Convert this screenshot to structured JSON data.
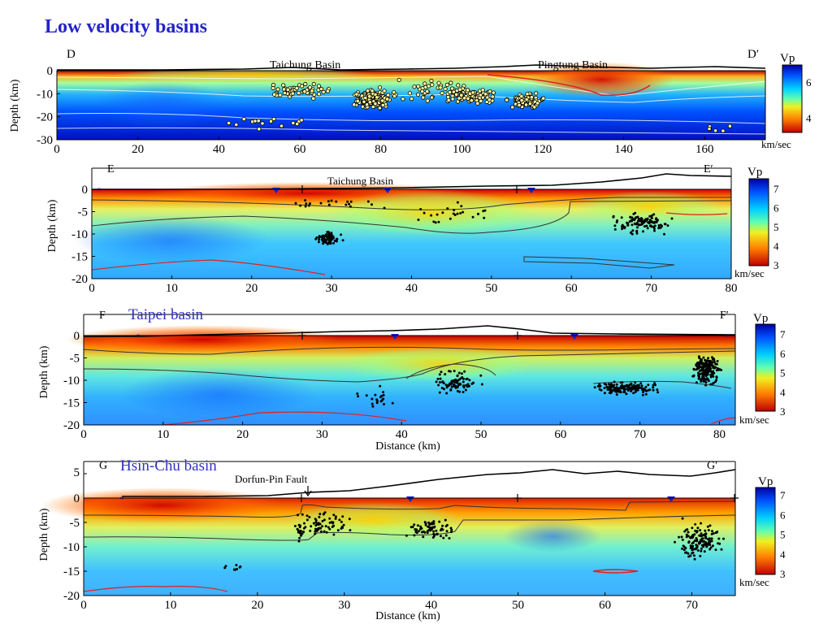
{
  "slide": {
    "title": "Low velocity basins"
  },
  "panels": [
    {
      "id": "D",
      "left_label": "D",
      "right_label": "D′",
      "basin_labels": [
        "Taichung Basin",
        "Pingtung Basin"
      ],
      "ylabel": "Depth (km)",
      "xlabel": "",
      "x_ticks": [
        "0",
        "20",
        "40",
        "60",
        "80",
        "100",
        "120",
        "140",
        "160"
      ],
      "y_ticks": [
        "0",
        "-10",
        "-20",
        "-30"
      ],
      "colorbar": {
        "title": "Vp",
        "ticks": [
          "6",
          "4"
        ],
        "unit": "km/sec"
      }
    },
    {
      "id": "E",
      "left_label": "E",
      "right_label": "E′",
      "basin_labels": [
        "Taichung Basin"
      ],
      "ylabel": "Depth (km)",
      "xlabel": "",
      "x_ticks": [
        "0",
        "10",
        "20",
        "30",
        "40",
        "50",
        "60",
        "70",
        "80"
      ],
      "y_ticks": [
        "0",
        "-5",
        "-10",
        "-15",
        "-20"
      ],
      "colorbar": {
        "title": "Vp",
        "ticks": [
          "7",
          "6",
          "5",
          "4",
          "3"
        ],
        "unit": "km/sec"
      }
    },
    {
      "id": "F",
      "left_label": "F",
      "right_label": "F′",
      "overlay_label": "Taipei basin",
      "ylabel": "Depth (km)",
      "xlabel": "Distance (km)",
      "x_ticks": [
        "0",
        "10",
        "20",
        "30",
        "40",
        "50",
        "60",
        "70",
        "80"
      ],
      "y_ticks": [
        "0",
        "-5",
        "-10",
        "-15",
        "-20"
      ],
      "colorbar": {
        "title": "Vp",
        "ticks": [
          "7",
          "6",
          "5",
          "4",
          "3"
        ],
        "unit": "km/sec"
      }
    },
    {
      "id": "G",
      "left_label": "G",
      "right_label": "G′",
      "overlay_label": "Hsin-Chu basin",
      "fault_label": "Dorfun-Pin Fault",
      "ylabel": "Depth (km)",
      "xlabel": "Distance (km)",
      "x_ticks": [
        "0",
        "10",
        "20",
        "30",
        "40",
        "50",
        "60",
        "70"
      ],
      "y_ticks": [
        "5",
        "0",
        "-5",
        "-10",
        "-15",
        "-20"
      ],
      "colorbar": {
        "title": "Vp",
        "ticks": [
          "7",
          "6",
          "5",
          "4",
          "3"
        ],
        "unit": "km/sec"
      }
    }
  ],
  "colors": {
    "title": "#2323c8",
    "label": "#3030c0",
    "contour_red": "#e02020"
  }
}
